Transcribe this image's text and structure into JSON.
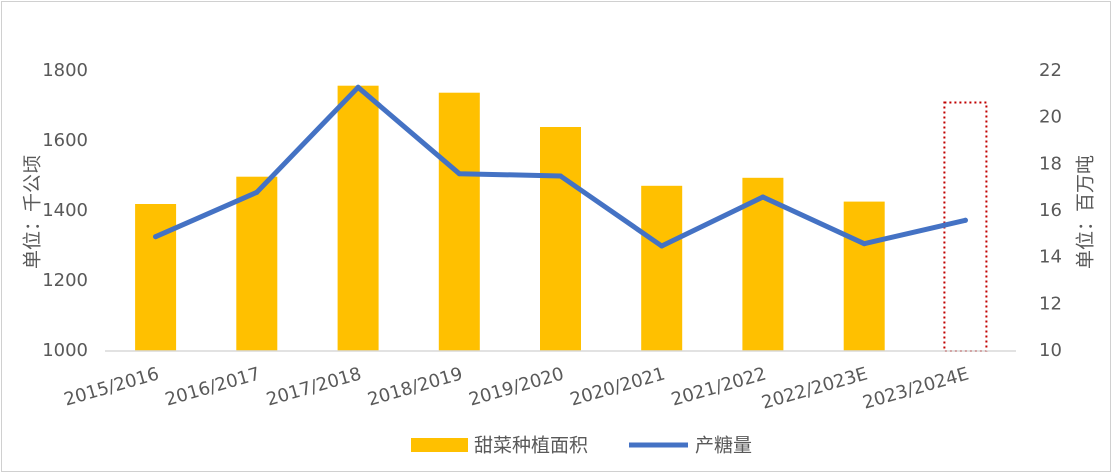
{
  "chart_data": {
    "type": "bar",
    "categories": [
      "2015/2016",
      "2016/2017",
      "2017/2018",
      "2018/2019",
      "2019/2020",
      "2020/2021",
      "2021/2022",
      "2022/2023E",
      "2023/2024E"
    ],
    "series": [
      {
        "name": "甜菜种植面积",
        "type": "bar",
        "axis": "left",
        "color": "#FFC000",
        "values": [
          1420,
          1498,
          1758,
          1738,
          1640,
          1472,
          1495,
          1427,
          null
        ]
      },
      {
        "name": "产糖量",
        "type": "line",
        "axis": "right",
        "color": "#4472C4",
        "values": [
          14.9,
          16.8,
          21.3,
          17.6,
          17.5,
          14.5,
          16.6,
          14.6,
          15.6
        ]
      }
    ],
    "ylabel": "单位：千公顷",
    "ylabel_right": "单位：百万吨",
    "ylim": [
      1000,
      1800
    ],
    "ylim_right": [
      10,
      22
    ],
    "yticks": [
      "1000",
      "1200",
      "1400",
      "1600",
      "1800"
    ],
    "yticks_right": [
      "10",
      "12",
      "14",
      "16",
      "18",
      "20",
      "22"
    ],
    "highlight_category": "2023/2024E",
    "highlight_color": "#C00000",
    "grid": false,
    "legend_position": "bottom"
  }
}
